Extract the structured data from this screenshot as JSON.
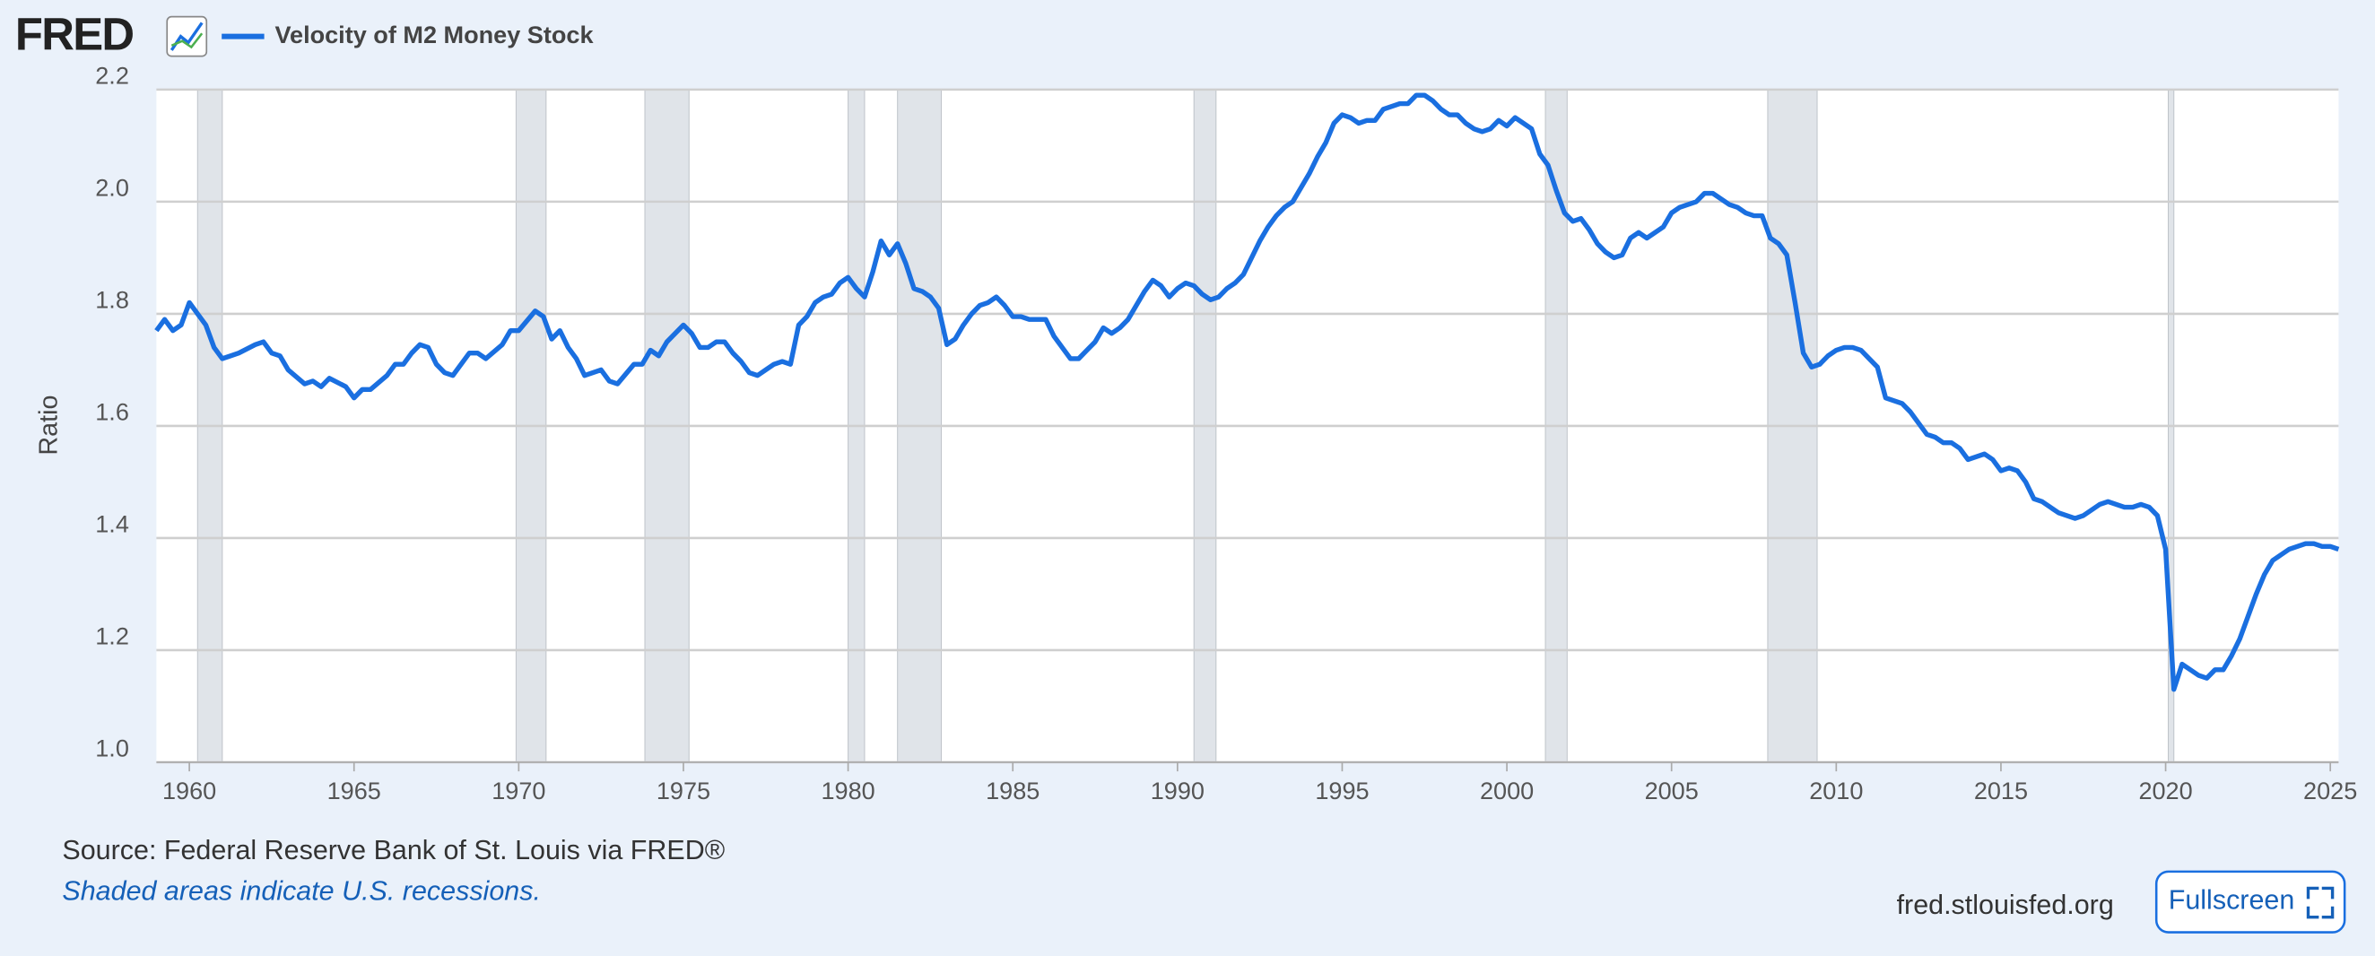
{
  "logo": "FRED",
  "chart_data": {
    "type": "line",
    "y_label": "Ratio",
    "series": [
      {
        "name": "Velocity of M2 Money Stock",
        "color": "#1a6fe0",
        "x": [
          1959,
          1959.25,
          1959.5,
          1959.75,
          1960,
          1960.25,
          1960.5,
          1960.75,
          1961,
          1961.5,
          1962,
          1962.25,
          1962.5,
          1962.75,
          1963,
          1963.5,
          1963.75,
          1964,
          1964.25,
          1964.75,
          1965,
          1965.25,
          1965.5,
          1966,
          1966.25,
          1966.5,
          1966.75,
          1967,
          1967.25,
          1967.5,
          1967.75,
          1968,
          1968.5,
          1968.75,
          1969,
          1969.5,
          1969.75,
          1970,
          1970.5,
          1970.75,
          1971,
          1971.25,
          1971.5,
          1971.75,
          1972,
          1972.5,
          1972.75,
          1973,
          1973.5,
          1973.75,
          1974,
          1974.25,
          1974.5,
          1975,
          1975.25,
          1975.5,
          1975.75,
          1976,
          1976.25,
          1976.5,
          1976.75,
          1977,
          1977.25,
          1977.5,
          1977.75,
          1978,
          1978.25,
          1978.5,
          1978.75,
          1979,
          1979.25,
          1979.5,
          1979.75,
          1980,
          1980.25,
          1980.5,
          1980.75,
          1981,
          1981.25,
          1981.5,
          1981.75,
          1982,
          1982.25,
          1982.5,
          1982.75,
          1983,
          1983.25,
          1983.5,
          1983.75,
          1984,
          1984.25,
          1984.5,
          1984.75,
          1985,
          1985.25,
          1985.5,
          1986,
          1986.25,
          1986.5,
          1986.75,
          1987,
          1987.25,
          1987.5,
          1987.75,
          1988,
          1988.25,
          1988.5,
          1988.75,
          1989,
          1989.25,
          1989.5,
          1989.75,
          1990,
          1990.25,
          1990.5,
          1990.75,
          1991,
          1991.25,
          1991.5,
          1991.75,
          1992,
          1992.25,
          1992.5,
          1992.75,
          1993,
          1993.25,
          1993.5,
          1993.75,
          1994,
          1994.25,
          1994.5,
          1994.75,
          1995,
          1995.25,
          1995.5,
          1995.75,
          1996,
          1996.25,
          1996.5,
          1996.75,
          1997,
          1997.25,
          1997.5,
          1997.75,
          1998,
          1998.25,
          1998.5,
          1998.75,
          1999,
          1999.25,
          1999.5,
          1999.75,
          2000,
          2000.25,
          2000.5,
          2000.75,
          2001,
          2001.25,
          2001.5,
          2001.75,
          2002,
          2002.25,
          2002.5,
          2002.75,
          2003,
          2003.25,
          2003.5,
          2003.75,
          2004,
          2004.25,
          2004.5,
          2004.75,
          2005,
          2005.25,
          2005.5,
          2005.75,
          2006,
          2006.25,
          2006.5,
          2006.75,
          2007,
          2007.25,
          2007.5,
          2007.75,
          2008,
          2008.25,
          2008.5,
          2008.75,
          2009,
          2009.25,
          2009.5,
          2009.75,
          2010,
          2010.25,
          2010.5,
          2010.75,
          2011,
          2011.25,
          2011.5,
          2011.75,
          2012,
          2012.25,
          2012.5,
          2012.75,
          2013,
          2013.25,
          2013.5,
          2013.75,
          2014,
          2014.25,
          2014.5,
          2014.75,
          2015,
          2015.25,
          2015.5,
          2015.75,
          2016,
          2016.25,
          2016.5,
          2016.75,
          2017,
          2017.25,
          2017.5,
          2017.75,
          2018,
          2018.25,
          2018.5,
          2018.75,
          2019,
          2019.25,
          2019.5,
          2019.75,
          2020,
          2020.25,
          2020.5,
          2020.75,
          2021,
          2021.25,
          2021.5,
          2021.75,
          2022,
          2022.25,
          2022.5,
          2022.75,
          2023,
          2023.25,
          2023.5,
          2023.75,
          2024,
          2024.25,
          2024.5,
          2024.75,
          2025,
          2025.25
        ],
        "values": [
          1.77,
          1.79,
          1.77,
          1.78,
          1.82,
          1.8,
          1.78,
          1.74,
          1.72,
          1.73,
          1.745,
          1.75,
          1.73,
          1.725,
          1.7,
          1.675,
          1.68,
          1.67,
          1.685,
          1.67,
          1.65,
          1.665,
          1.665,
          1.69,
          1.71,
          1.71,
          1.73,
          1.745,
          1.74,
          1.71,
          1.695,
          1.69,
          1.73,
          1.73,
          1.72,
          1.745,
          1.77,
          1.77,
          1.805,
          1.795,
          1.755,
          1.77,
          1.74,
          1.72,
          1.69,
          1.7,
          1.68,
          1.675,
          1.71,
          1.71,
          1.735,
          1.725,
          1.75,
          1.78,
          1.765,
          1.74,
          1.74,
          1.75,
          1.75,
          1.73,
          1.715,
          1.695,
          1.69,
          1.7,
          1.71,
          1.715,
          1.71,
          1.78,
          1.795,
          1.82,
          1.83,
          1.835,
          1.855,
          1.865,
          1.845,
          1.83,
          1.875,
          1.93,
          1.905,
          1.925,
          1.89,
          1.845,
          1.84,
          1.83,
          1.81,
          1.745,
          1.755,
          1.78,
          1.8,
          1.815,
          1.82,
          1.83,
          1.815,
          1.795,
          1.795,
          1.79,
          1.79,
          1.76,
          1.74,
          1.72,
          1.72,
          1.735,
          1.75,
          1.775,
          1.765,
          1.775,
          1.79,
          1.815,
          1.84,
          1.86,
          1.85,
          1.83,
          1.845,
          1.855,
          1.85,
          1.835,
          1.825,
          1.83,
          1.845,
          1.855,
          1.87,
          1.9,
          1.93,
          1.955,
          1.975,
          1.99,
          2.0,
          2.025,
          2.05,
          2.08,
          2.105,
          2.14,
          2.155,
          2.15,
          2.14,
          2.145,
          2.145,
          2.165,
          2.17,
          2.175,
          2.175,
          2.19,
          2.19,
          2.18,
          2.165,
          2.155,
          2.155,
          2.14,
          2.13,
          2.125,
          2.13,
          2.145,
          2.135,
          2.15,
          2.14,
          2.13,
          2.085,
          2.065,
          2.02,
          1.98,
          1.965,
          1.97,
          1.95,
          1.925,
          1.91,
          1.9,
          1.905,
          1.935,
          1.945,
          1.935,
          1.945,
          1.955,
          1.98,
          1.99,
          1.995,
          2.0,
          2.015,
          2.015,
          2.005,
          1.995,
          1.99,
          1.98,
          1.975,
          1.975,
          1.935,
          1.925,
          1.905,
          1.82,
          1.73,
          1.705,
          1.71,
          1.725,
          1.735,
          1.74,
          1.74,
          1.735,
          1.72,
          1.705,
          1.65,
          1.645,
          1.64,
          1.625,
          1.605,
          1.585,
          1.58,
          1.57,
          1.57,
          1.56,
          1.54,
          1.545,
          1.55,
          1.54,
          1.52,
          1.525,
          1.52,
          1.5,
          1.47,
          1.465,
          1.455,
          1.445,
          1.44,
          1.435,
          1.44,
          1.45,
          1.46,
          1.465,
          1.46,
          1.455,
          1.455,
          1.46,
          1.455,
          1.44,
          1.38,
          1.13,
          1.175,
          1.165,
          1.155,
          1.15,
          1.165,
          1.165,
          1.19,
          1.22,
          1.26,
          1.3,
          1.335,
          1.36,
          1.37,
          1.38,
          1.385,
          1.39,
          1.39,
          1.385,
          1.385,
          1.38
        ]
      }
    ],
    "xlim": [
      1959,
      2025.25
    ],
    "xticks": [
      1960,
      1965,
      1970,
      1975,
      1980,
      1985,
      1990,
      1995,
      2000,
      2005,
      2010,
      2015,
      2020,
      2025
    ],
    "ylim": [
      1.0,
      2.2
    ],
    "yticks": [
      {
        "value": 1,
        "label": "1.0"
      },
      1.2,
      1.4,
      1.6,
      1.8,
      {
        "value": 2,
        "label": "2.0"
      },
      2.2
    ],
    "grid": true,
    "recessions": [
      [
        1960.25,
        1961.0
      ],
      [
        1969.92,
        1970.83
      ],
      [
        1973.83,
        1975.17
      ],
      [
        1980.0,
        1980.5
      ],
      [
        1981.5,
        1982.83
      ],
      [
        1990.5,
        1991.17
      ],
      [
        2001.17,
        2001.83
      ],
      [
        2007.92,
        2009.42
      ],
      [
        2020.08,
        2020.25
      ]
    ],
    "recession_color": "#e0e4e9",
    "source": "Source: Federal Reserve Bank of St. Louis via FRED®",
    "note": "Shaded areas indicate U.S. recessions.",
    "website": "fred.stlouisfed.org"
  },
  "fullscreen_button": "Fullscreen"
}
